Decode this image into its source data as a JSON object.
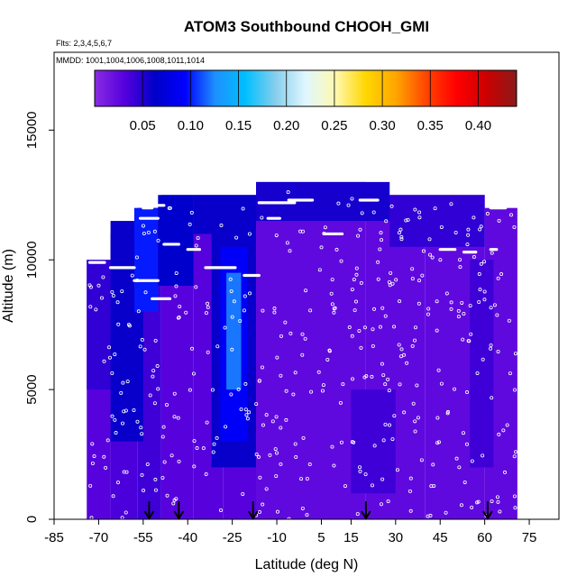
{
  "chart_data": {
    "type": "heatmap",
    "title": "ATOM3 Southbound CHOOH_GMI",
    "flights_label": "Flts: 2,3,4,5,6,7",
    "dates_label": "MMDD: 1001,1004,1006,1008,1011,1014",
    "xlabel": "Latitude (deg N)",
    "ylabel": "Altitude (m)",
    "xlim": [
      -85,
      85
    ],
    "ylim": [
      0,
      18000
    ],
    "x_ticks": [
      -85,
      -70,
      -55,
      -40,
      -25,
      -10,
      5,
      15,
      30,
      45,
      60,
      75
    ],
    "y_ticks": [
      0,
      5000,
      10000,
      15000
    ],
    "colorbar": {
      "min": 0.0,
      "max": 0.44,
      "ticks": [
        0.05,
        0.1,
        0.15,
        0.2,
        0.25,
        0.3,
        0.35,
        0.4
      ],
      "tick_labels": [
        "0.05",
        "0.10",
        "0.15",
        "0.20",
        "0.25",
        "0.30",
        "0.35",
        "0.40"
      ],
      "colors": [
        "#8a2be2",
        "#5500dd",
        "#0000c8",
        "#0000ff",
        "#1e90ff",
        "#00bfff",
        "#87ceeb",
        "#e0f7ff",
        "#fff8b0",
        "#ffd700",
        "#ffa500",
        "#ff4500",
        "#ff0000",
        "#cc0000",
        "#8b1a1a"
      ]
    },
    "field_regions": [
      {
        "lat_min": -74,
        "lat_max": -66,
        "alt_min": 0,
        "alt_max": 10000,
        "value": 0.03
      },
      {
        "lat_min": -66,
        "lat_max": -57,
        "alt_min": 0,
        "alt_max": 11000,
        "value": 0.035
      },
      {
        "lat_min": -57,
        "lat_max": -49,
        "alt_min": 0,
        "alt_max": 12000,
        "value": 0.04
      },
      {
        "lat_min": -49,
        "lat_max": -38,
        "alt_min": 0,
        "alt_max": 12500,
        "value": 0.03
      },
      {
        "lat_min": -38,
        "lat_max": -28,
        "alt_min": 0,
        "alt_max": 12500,
        "value": 0.03
      },
      {
        "lat_min": -28,
        "lat_max": -17,
        "alt_min": 0,
        "alt_max": 12500,
        "value": 0.03
      },
      {
        "lat_min": -17,
        "lat_max": 0,
        "alt_min": 0,
        "alt_max": 13000,
        "value": 0.025
      },
      {
        "lat_min": 0,
        "lat_max": 20,
        "alt_min": 0,
        "alt_max": 13000,
        "value": 0.025
      },
      {
        "lat_min": 20,
        "lat_max": 40,
        "alt_min": 0,
        "alt_max": 12500,
        "value": 0.025
      },
      {
        "lat_min": 40,
        "lat_max": 60,
        "alt_min": 0,
        "alt_max": 12500,
        "value": 0.025
      },
      {
        "lat_min": 60,
        "lat_max": 71,
        "alt_min": 0,
        "alt_max": 12000,
        "value": 0.025
      },
      {
        "lat_min": -74,
        "lat_max": -62,
        "alt_min": 5000,
        "alt_max": 10000,
        "value": 0.045
      },
      {
        "lat_min": -66,
        "lat_max": -55,
        "alt_min": 3000,
        "alt_max": 11500,
        "value": 0.06
      },
      {
        "lat_min": -58,
        "lat_max": -50,
        "alt_min": 8000,
        "alt_max": 12000,
        "value": 0.1
      },
      {
        "lat_min": -50,
        "lat_max": -38,
        "alt_min": 9000,
        "alt_max": 12500,
        "value": 0.065
      },
      {
        "lat_min": -38,
        "lat_max": -17,
        "alt_min": 11000,
        "alt_max": 12500,
        "value": 0.06
      },
      {
        "lat_min": -32,
        "lat_max": -17,
        "alt_min": 2000,
        "alt_max": 11000,
        "value": 0.06
      },
      {
        "lat_min": -29,
        "lat_max": -20,
        "alt_min": 3000,
        "alt_max": 10500,
        "value": 0.09
      },
      {
        "lat_min": -27,
        "lat_max": -22,
        "alt_min": 5000,
        "alt_max": 9500,
        "value": 0.12
      },
      {
        "lat_min": -17,
        "lat_max": 28,
        "alt_min": 11500,
        "alt_max": 13000,
        "value": 0.055
      },
      {
        "lat_min": 28,
        "lat_max": 60,
        "alt_min": 10500,
        "alt_max": 12500,
        "value": 0.045
      },
      {
        "lat_min": 15,
        "lat_max": 30,
        "alt_min": 1000,
        "alt_max": 5000,
        "value": 0.04
      },
      {
        "lat_min": 55,
        "lat_max": 63,
        "alt_min": 2000,
        "alt_max": 10000,
        "value": 0.04
      }
    ],
    "flight_tracks": [
      {
        "lat_start": -73,
        "lat_end": -68,
        "alt": 9900
      },
      {
        "lat_start": -66,
        "lat_end": -58,
        "alt": 9700
      },
      {
        "lat_start": -56,
        "lat_end": -50,
        "alt": 11600
      },
      {
        "lat_start": -55,
        "lat_end": -52,
        "alt": 12000
      },
      {
        "lat_start": -52,
        "lat_end": -48,
        "alt": 12100
      },
      {
        "lat_start": -58,
        "lat_end": -50,
        "alt": 9200
      },
      {
        "lat_start": -52,
        "lat_end": -46,
        "alt": 8500
      },
      {
        "lat_start": -48,
        "lat_end": -43,
        "alt": 10600
      },
      {
        "lat_start": -40,
        "lat_end": -36,
        "alt": 10400
      },
      {
        "lat_start": -34,
        "lat_end": -24,
        "alt": 9700
      },
      {
        "lat_start": -21,
        "lat_end": -16,
        "alt": 9400
      },
      {
        "lat_start": -13,
        "lat_end": -9,
        "alt": 11600
      },
      {
        "lat_start": -16,
        "lat_end": -4,
        "alt": 12200
      },
      {
        "lat_start": -6,
        "lat_end": 2,
        "alt": 12300
      },
      {
        "lat_start": 6,
        "lat_end": 12,
        "alt": 11000
      },
      {
        "lat_start": 18,
        "lat_end": 24,
        "alt": 12300
      },
      {
        "lat_start": 45,
        "lat_end": 50,
        "alt": 10400
      },
      {
        "lat_start": 53,
        "lat_end": 57,
        "alt": 10300
      },
      {
        "lat_start": 62,
        "lat_end": 67,
        "alt": 12000
      },
      {
        "lat_start": 62,
        "lat_end": 64,
        "alt": 10400
      }
    ],
    "arrow_latitudes": [
      -53,
      -43,
      -18,
      20,
      61
    ]
  }
}
